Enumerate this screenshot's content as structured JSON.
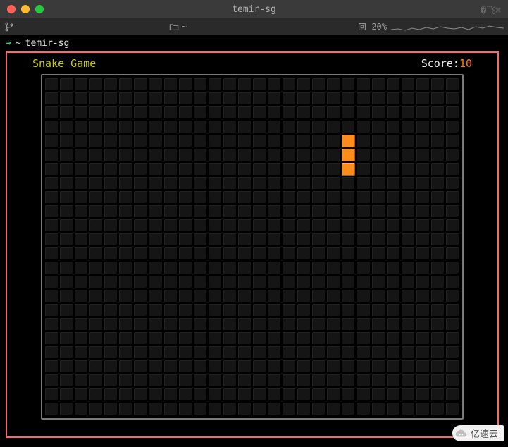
{
  "window": {
    "title": "temir-sg",
    "right_hint": "�飞⌘"
  },
  "toolbar": {
    "left_glyph": "⎇",
    "path_label": "~",
    "zoom_label": "20%"
  },
  "prompt": {
    "arrow": "→",
    "cwd": "~",
    "command": "temir-sg"
  },
  "game": {
    "title": "Snake Game",
    "score_label": "Score:",
    "score_value": "10",
    "grid": {
      "cols": 28,
      "rows": 24,
      "cell_bg": "#151515",
      "snake_color": "#ff8c1a",
      "snake_cells": [
        {
          "r": 4,
          "c": 20
        },
        {
          "r": 5,
          "c": 20
        },
        {
          "r": 6,
          "c": 20
        }
      ]
    },
    "border_color": "#7a7a7a",
    "frame_color": "#ff6666",
    "title_color": "#cccc00",
    "background": "#000000"
  },
  "watermark": {
    "text": "亿速云"
  }
}
